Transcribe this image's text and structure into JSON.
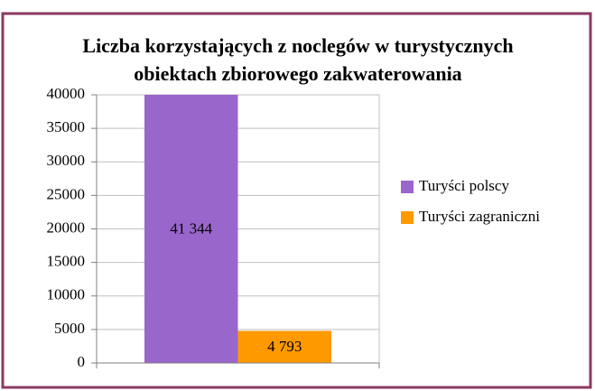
{
  "chart_data": {
    "type": "bar",
    "title": [
      "Liczba korzystających z noclegów w turystycznych",
      "obiektach zbiorowego zakwaterowania"
    ],
    "categories": [
      null
    ],
    "series": [
      {
        "name": "Turyści polscy",
        "color": "#9966cc",
        "values": [
          41344
        ],
        "value_labels": [
          "41 344"
        ]
      },
      {
        "name": "Turyści zagraniczni",
        "color": "#ff9900",
        "values": [
          4793
        ],
        "value_labels": [
          "4 793"
        ]
      }
    ],
    "ylim": [
      0,
      40000
    ],
    "yticks": [
      0,
      5000,
      10000,
      15000,
      20000,
      25000,
      30000,
      35000,
      40000
    ],
    "grid": true,
    "legend": "right"
  }
}
